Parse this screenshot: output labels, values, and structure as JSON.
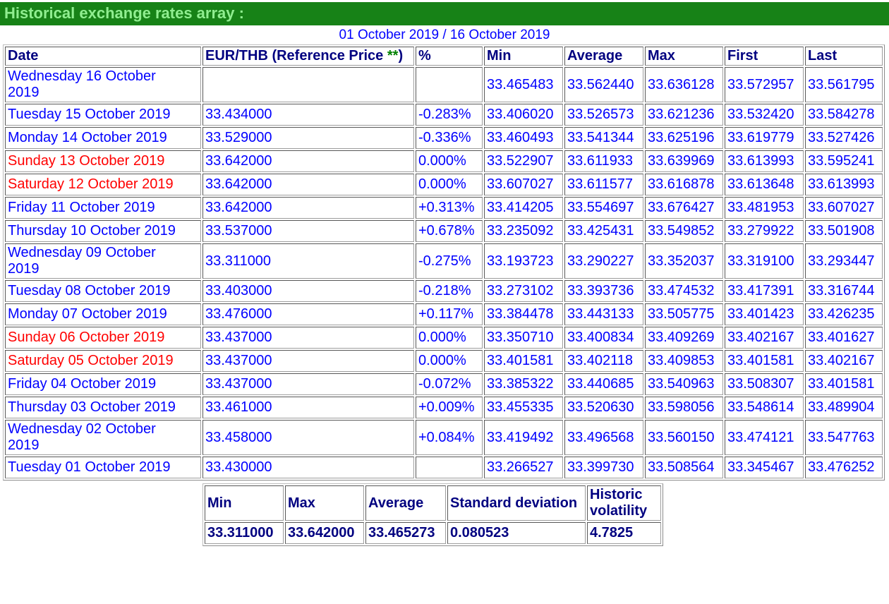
{
  "page": {
    "title": "Historical exchange rates array :",
    "date_range": "01 October 2019 / 16 October 2019"
  },
  "colors": {
    "title_bar_bg": "#178217",
    "title_text": "#90EE90",
    "data_blue": "#0000ff",
    "header_navy": "#000080",
    "weekend_red": "#ff0000",
    "stars_green": "#008000"
  },
  "main_table": {
    "headers": {
      "date": "Date",
      "eur_thb_prefix": "EUR/THB (Reference Price ",
      "eur_thb_stars": "**",
      "eur_thb_suffix": ")",
      "pct": "%",
      "min": "Min",
      "average": "Average",
      "max": "Max",
      "first": "First",
      "last": "Last"
    },
    "rows": [
      {
        "date": "Wednesday 16 October 2019",
        "weekend": false,
        "ref": "",
        "pct": "",
        "min": "33.465483",
        "avg": "33.562440",
        "max": "33.636128",
        "first": "33.572957",
        "last": "33.561795"
      },
      {
        "date": "Tuesday 15 October 2019",
        "weekend": false,
        "ref": "33.434000",
        "pct": "-0.283%",
        "min": "33.406020",
        "avg": "33.526573",
        "max": "33.621236",
        "first": "33.532420",
        "last": "33.584278"
      },
      {
        "date": "Monday 14 October 2019",
        "weekend": false,
        "ref": "33.529000",
        "pct": "-0.336%",
        "min": "33.460493",
        "avg": "33.541344",
        "max": "33.625196",
        "first": "33.619779",
        "last": "33.527426"
      },
      {
        "date": "Sunday 13 October 2019",
        "weekend": true,
        "ref": "33.642000",
        "pct": "0.000%",
        "min": "33.522907",
        "avg": "33.611933",
        "max": "33.639969",
        "first": "33.613993",
        "last": "33.595241"
      },
      {
        "date": "Saturday 12 October 2019",
        "weekend": true,
        "ref": "33.642000",
        "pct": "0.000%",
        "min": "33.607027",
        "avg": "33.611577",
        "max": "33.616878",
        "first": "33.613648",
        "last": "33.613993"
      },
      {
        "date": "Friday 11 October 2019",
        "weekend": false,
        "ref": "33.642000",
        "pct": "+0.313%",
        "min": "33.414205",
        "avg": "33.554697",
        "max": "33.676427",
        "first": "33.481953",
        "last": "33.607027"
      },
      {
        "date": "Thursday 10 October 2019",
        "weekend": false,
        "ref": "33.537000",
        "pct": "+0.678%",
        "min": "33.235092",
        "avg": "33.425431",
        "max": "33.549852",
        "first": "33.279922",
        "last": "33.501908"
      },
      {
        "date": "Wednesday 09 October 2019",
        "weekend": false,
        "ref": "33.311000",
        "pct": "-0.275%",
        "min": "33.193723",
        "avg": "33.290227",
        "max": "33.352037",
        "first": "33.319100",
        "last": "33.293447"
      },
      {
        "date": "Tuesday 08 October 2019",
        "weekend": false,
        "ref": "33.403000",
        "pct": "-0.218%",
        "min": "33.273102",
        "avg": "33.393736",
        "max": "33.474532",
        "first": "33.417391",
        "last": "33.316744"
      },
      {
        "date": "Monday 07 October 2019",
        "weekend": false,
        "ref": "33.476000",
        "pct": "+0.117%",
        "min": "33.384478",
        "avg": "33.443133",
        "max": "33.505775",
        "first": "33.401423",
        "last": "33.426235"
      },
      {
        "date": "Sunday 06 October 2019",
        "weekend": true,
        "ref": "33.437000",
        "pct": "0.000%",
        "min": "33.350710",
        "avg": "33.400834",
        "max": "33.409269",
        "first": "33.402167",
        "last": "33.401627"
      },
      {
        "date": "Saturday 05 October 2019",
        "weekend": true,
        "ref": "33.437000",
        "pct": "0.000%",
        "min": "33.401581",
        "avg": "33.402118",
        "max": "33.409853",
        "first": "33.401581",
        "last": "33.402167"
      },
      {
        "date": "Friday 04 October 2019",
        "weekend": false,
        "ref": "33.437000",
        "pct": "-0.072%",
        "min": "33.385322",
        "avg": "33.440685",
        "max": "33.540963",
        "first": "33.508307",
        "last": "33.401581"
      },
      {
        "date": "Thursday 03 October 2019",
        "weekend": false,
        "ref": "33.461000",
        "pct": "+0.009%",
        "min": "33.455335",
        "avg": "33.520630",
        "max": "33.598056",
        "first": "33.548614",
        "last": "33.489904"
      },
      {
        "date": "Wednesday 02 October 2019",
        "weekend": false,
        "ref": "33.458000",
        "pct": "+0.084%",
        "min": "33.419492",
        "avg": "33.496568",
        "max": "33.560150",
        "first": "33.474121",
        "last": "33.547763"
      },
      {
        "date": "Tuesday 01 October 2019",
        "weekend": false,
        "ref": "33.430000",
        "pct": "",
        "min": "33.266527",
        "avg": "33.399730",
        "max": "33.508564",
        "first": "33.345467",
        "last": "33.476252"
      }
    ]
  },
  "summary_table": {
    "columns": [
      "Min",
      "Max",
      "Average",
      "Standard deviation",
      "Historic volatility"
    ],
    "values": [
      "33.311000",
      "33.642000",
      "33.465273",
      "0.080523",
      "4.7825"
    ]
  }
}
